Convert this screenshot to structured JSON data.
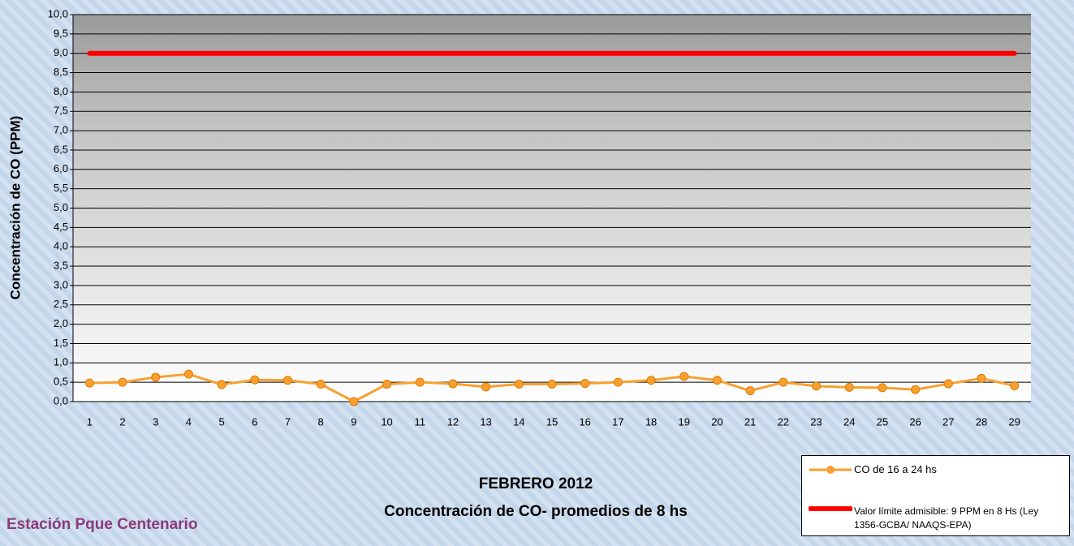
{
  "chart_data": {
    "type": "line",
    "title": "FEBRERO 2012",
    "subtitle": "Concentración de CO- promedios de 8 hs",
    "annotation": "Estación Pque Centenario",
    "y_label": "Concentración de CO (PPM)",
    "categories": [
      "1",
      "2",
      "3",
      "4",
      "5",
      "6",
      "7",
      "8",
      "9",
      "10",
      "11",
      "12",
      "13",
      "14",
      "15",
      "16",
      "17",
      "18",
      "19",
      "20",
      "21",
      "22",
      "23",
      "24",
      "25",
      "26",
      "27",
      "28",
      "29"
    ],
    "series": [
      {
        "name": "CO de 16 a 24 hs",
        "color": "#f7a030",
        "values": [
          0.48,
          0.5,
          0.63,
          0.71,
          0.44,
          0.56,
          0.55,
          0.45,
          0.0,
          0.45,
          0.5,
          0.46,
          0.38,
          0.45,
          0.45,
          0.47,
          0.5,
          0.55,
          0.65,
          0.55,
          0.28,
          0.5,
          0.4,
          0.37,
          0.36,
          0.31,
          0.46,
          0.6,
          0.41
        ]
      },
      {
        "name": "Valor límite admisible: 9 PPM en 8 Hs (Ley 1356-GCBA/ NAAQS-EPA)",
        "color": "#ff0000",
        "values": [
          9,
          9,
          9,
          9,
          9,
          9,
          9,
          9,
          9,
          9,
          9,
          9,
          9,
          9,
          9,
          9,
          9,
          9,
          9,
          9,
          9,
          9,
          9,
          9,
          9,
          9,
          9,
          9,
          9
        ]
      }
    ],
    "ylim": [
      0,
      10
    ],
    "yticks": [
      {
        "value": 0,
        "label": "0,0"
      },
      {
        "value": 0.5,
        "label": "0,5"
      },
      {
        "value": 1,
        "label": "1,0"
      },
      {
        "value": 1.5,
        "label": "1,5"
      },
      {
        "value": 2,
        "label": "2,0"
      },
      {
        "value": 2.5,
        "label": "2,5"
      },
      {
        "value": 3,
        "label": "3,0"
      },
      {
        "value": 3.5,
        "label": "3,5"
      },
      {
        "value": 4,
        "label": "4,0"
      },
      {
        "value": 4.5,
        "label": "4,5"
      },
      {
        "value": 5,
        "label": "5,0"
      },
      {
        "value": 5.5,
        "label": "5,5"
      },
      {
        "value": 6,
        "label": "6,0"
      },
      {
        "value": 6.5,
        "label": "6,5"
      },
      {
        "value": 7,
        "label": "7,0"
      },
      {
        "value": 7.5,
        "label": "7,5"
      },
      {
        "value": 8,
        "label": "8,0"
      },
      {
        "value": 8.5,
        "label": "8,5"
      },
      {
        "value": 9,
        "label": "9,0"
      },
      {
        "value": 9.5,
        "label": "9,5"
      },
      {
        "value": 10,
        "label": "10,0"
      }
    ],
    "grid": true
  }
}
